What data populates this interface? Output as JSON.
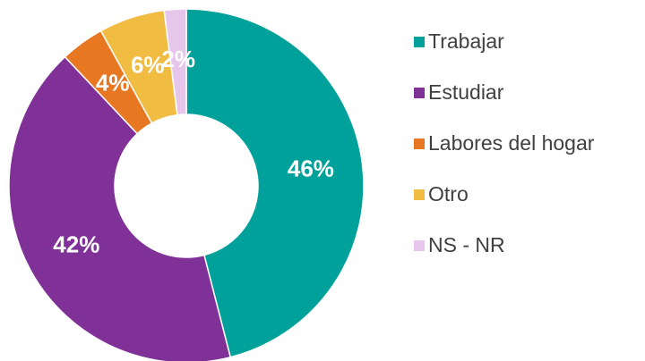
{
  "chart_data": {
    "type": "donut",
    "categories": [
      "Trabajar",
      "Estudiar",
      "Labores del hogar",
      "Otro",
      "NS - NR"
    ],
    "values": [
      46,
      42,
      4,
      6,
      2
    ],
    "value_labels": [
      "46%",
      "42%",
      "4%",
      "6%",
      "2%"
    ],
    "colors": [
      "#00a19a",
      "#7f3197",
      "#e87722",
      "#f0bc41",
      "#e6c6ea"
    ],
    "legend": "right"
  }
}
